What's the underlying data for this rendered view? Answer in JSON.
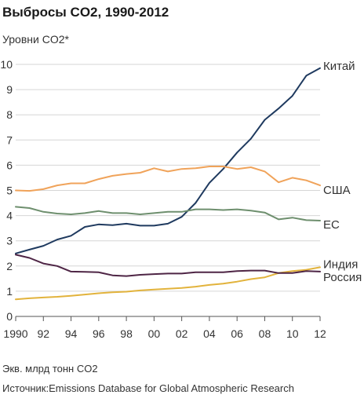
{
  "header": {
    "title": "Выбросы CO2, 1990-2012",
    "subtitle": "Уровни CO2*"
  },
  "footer": {
    "unit_note": "Экв. млрд тонн CO2",
    "source": "Источник:Emissions Database for Global Atmospheric Research"
  },
  "chart_data": {
    "type": "line",
    "title": "Выбросы CO2, 1990-2012",
    "subtitle": "Уровни CO2*",
    "xlabel": "",
    "ylabel": "",
    "x": [
      1990,
      1991,
      1992,
      1993,
      1994,
      1995,
      1996,
      1997,
      1998,
      1999,
      2000,
      2001,
      2002,
      2003,
      2004,
      2005,
      2006,
      2007,
      2008,
      2009,
      2010,
      2011,
      2012
    ],
    "x_tick_labels": [
      "1990",
      "92",
      "94",
      "96",
      "98",
      "00",
      "02",
      "04",
      "06",
      "08",
      "10",
      "12"
    ],
    "y_tick_labels": [
      "0",
      "1",
      "2",
      "3",
      "4",
      "5",
      "6",
      "7",
      "8",
      "9",
      "10"
    ],
    "xlim": [
      1990,
      2012
    ],
    "ylim": [
      0,
      10
    ],
    "grid": "horizontal",
    "legend": "direct labels at line ends (right)",
    "series": [
      {
        "name": "Китай",
        "color": "#1f3a5f",
        "values": [
          2.5,
          2.65,
          2.8,
          3.05,
          3.2,
          3.55,
          3.65,
          3.62,
          3.68,
          3.6,
          3.6,
          3.68,
          3.95,
          4.5,
          5.3,
          5.85,
          6.5,
          7.05,
          7.8,
          8.25,
          8.75,
          9.55,
          9.85
        ]
      },
      {
        "name": "США",
        "color": "#f0a35a",
        "values": [
          5.0,
          4.98,
          5.05,
          5.2,
          5.28,
          5.28,
          5.45,
          5.58,
          5.65,
          5.7,
          5.88,
          5.75,
          5.85,
          5.88,
          5.95,
          5.95,
          5.85,
          5.92,
          5.75,
          5.32,
          5.5,
          5.4,
          5.2
        ]
      },
      {
        "name": "ЕС",
        "color": "#6e8f6e",
        "values": [
          4.35,
          4.3,
          4.15,
          4.08,
          4.05,
          4.1,
          4.18,
          4.1,
          4.1,
          4.05,
          4.1,
          4.15,
          4.15,
          4.25,
          4.25,
          4.22,
          4.25,
          4.2,
          4.12,
          3.85,
          3.92,
          3.82,
          3.8
        ]
      },
      {
        "name": "Индия",
        "color": "#e2b33c",
        "values": [
          0.68,
          0.72,
          0.75,
          0.78,
          0.82,
          0.87,
          0.92,
          0.96,
          0.98,
          1.03,
          1.07,
          1.1,
          1.13,
          1.18,
          1.25,
          1.3,
          1.38,
          1.48,
          1.55,
          1.72,
          1.8,
          1.85,
          1.95
        ]
      },
      {
        "name": "Россия",
        "color": "#4e2545",
        "values": [
          2.45,
          2.32,
          2.1,
          2.0,
          1.78,
          1.77,
          1.75,
          1.63,
          1.6,
          1.65,
          1.68,
          1.7,
          1.7,
          1.75,
          1.75,
          1.75,
          1.8,
          1.82,
          1.82,
          1.72,
          1.72,
          1.8,
          1.78
        ]
      }
    ],
    "label_colors": {
      "text": "#333333",
      "grid": "#d6d6d6",
      "axis": "#555555"
    }
  }
}
